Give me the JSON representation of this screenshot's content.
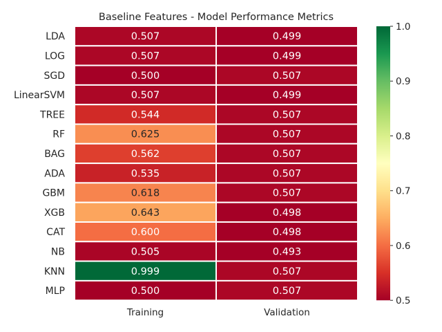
{
  "chart_data": {
    "type": "heatmap",
    "title": "Baseline Features - Model Performance Metrics",
    "rows": [
      "LDA",
      "LOG",
      "SGD",
      "LinearSVM",
      "TREE",
      "RF",
      "BAG",
      "ADA",
      "GBM",
      "XGB",
      "CAT",
      "NB",
      "KNN",
      "MLP"
    ],
    "columns": [
      "Training",
      "Validation"
    ],
    "values": [
      [
        0.507,
        0.499
      ],
      [
        0.507,
        0.499
      ],
      [
        0.5,
        0.507
      ],
      [
        0.507,
        0.499
      ],
      [
        0.544,
        0.507
      ],
      [
        0.625,
        0.507
      ],
      [
        0.562,
        0.507
      ],
      [
        0.535,
        0.507
      ],
      [
        0.618,
        0.507
      ],
      [
        0.643,
        0.498
      ],
      [
        0.6,
        0.498
      ],
      [
        0.505,
        0.493
      ],
      [
        0.999,
        0.507
      ],
      [
        0.5,
        0.507
      ]
    ],
    "value_labels": [
      [
        "0.507",
        "0.499"
      ],
      [
        "0.507",
        "0.499"
      ],
      [
        "0.500",
        "0.507"
      ],
      [
        "0.507",
        "0.499"
      ],
      [
        "0.544",
        "0.507"
      ],
      [
        "0.625",
        "0.507"
      ],
      [
        "0.562",
        "0.507"
      ],
      [
        "0.535",
        "0.507"
      ],
      [
        "0.618",
        "0.507"
      ],
      [
        "0.643",
        "0.498"
      ],
      [
        "0.600",
        "0.498"
      ],
      [
        "0.505",
        "0.493"
      ],
      [
        "0.999",
        "0.507"
      ],
      [
        "0.500",
        "0.507"
      ]
    ],
    "colormap": "RdYlGn",
    "vmin": 0.5,
    "vmax": 1.0,
    "colorbar_ticks": [
      0.5,
      0.6,
      0.7,
      0.8,
      0.9,
      1.0
    ],
    "colorbar_tick_labels": [
      "0.5",
      "0.6",
      "0.7",
      "0.8",
      "0.9",
      "1.0"
    ]
  }
}
